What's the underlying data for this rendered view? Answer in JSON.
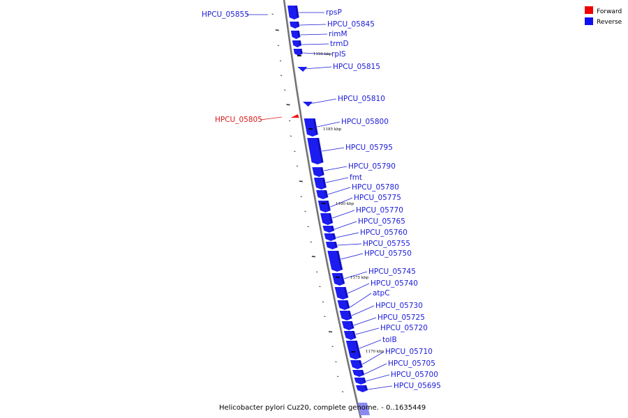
{
  "legend": {
    "forward": {
      "label": "Forward",
      "color": "#ee0000"
    },
    "reverse": {
      "label": "Reverse",
      "color": "#1010ee"
    }
  },
  "caption": "Helicobacter pylori Cuz20, complete genome. - 0..1635449",
  "colors": {
    "reverse_fill": "#1c1cf0",
    "reverse_dark": "#0c0c9a",
    "forward_fill": "#ee1111",
    "backbone": "#777777",
    "label_blue": "#1a1ad9",
    "label_red": "#d91a1a",
    "faint_gene": "#8080f0"
  },
  "genes": [
    {
      "label": "HPCU_05855",
      "strand": "reverse"
    },
    {
      "label": "rpsP",
      "strand": "reverse"
    },
    {
      "label": "HPCU_05845",
      "strand": "reverse"
    },
    {
      "label": "rimM",
      "strand": "reverse"
    },
    {
      "label": "trmD",
      "strand": "reverse"
    },
    {
      "label": "rplS",
      "strand": "reverse"
    },
    {
      "label": "HPCU_05815",
      "strand": "reverse"
    },
    {
      "label": "HPCU_05810",
      "strand": "reverse"
    },
    {
      "label": "HPCU_05805",
      "strand": "forward"
    },
    {
      "label": "HPCU_05800",
      "strand": "reverse"
    },
    {
      "label": "HPCU_05795",
      "strand": "reverse"
    },
    {
      "label": "HPCU_05790",
      "strand": "reverse"
    },
    {
      "label": "fmt",
      "strand": "reverse"
    },
    {
      "label": "HPCU_05780",
      "strand": "reverse"
    },
    {
      "label": "HPCU_05775",
      "strand": "reverse"
    },
    {
      "label": "HPCU_05770",
      "strand": "reverse"
    },
    {
      "label": "HPCU_05765",
      "strand": "reverse"
    },
    {
      "label": "HPCU_05760",
      "strand": "reverse"
    },
    {
      "label": "HPCU_05755",
      "strand": "reverse"
    },
    {
      "label": "HPCU_05750",
      "strand": "reverse"
    },
    {
      "label": "HPCU_05745",
      "strand": "reverse"
    },
    {
      "label": "HPCU_05740",
      "strand": "reverse"
    },
    {
      "label": "atpC",
      "strand": "reverse"
    },
    {
      "label": "HPCU_05730",
      "strand": "reverse"
    },
    {
      "label": "HPCU_05725",
      "strand": "reverse"
    },
    {
      "label": "HPCU_05720",
      "strand": "reverse"
    },
    {
      "label": "tolB",
      "strand": "reverse"
    },
    {
      "label": "HPCU_05710",
      "strand": "reverse"
    },
    {
      "label": "HPCU_05705",
      "strand": "reverse"
    },
    {
      "label": "HPCU_05700",
      "strand": "reverse"
    },
    {
      "label": "HPCU_05695",
      "strand": "reverse"
    }
  ],
  "ticks": [
    {
      "label": "1190 kbp"
    },
    {
      "label": "1185 kbp"
    },
    {
      "label": "1180 kbp"
    },
    {
      "label": "1175 kbp"
    },
    {
      "label": "1170 kbp"
    }
  ]
}
